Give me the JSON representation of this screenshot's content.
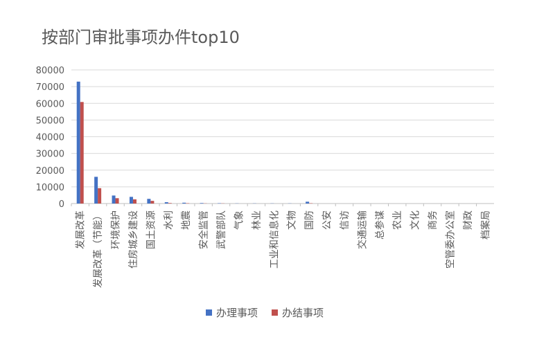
{
  "chart_data": {
    "type": "bar",
    "title": "按部门审批事项办件top10",
    "xlabel": "",
    "ylabel": "",
    "ylim": [
      0,
      80000
    ],
    "yticks": [
      "80000",
      "70000",
      "60000",
      "50000",
      "40000",
      "30000",
      "20000",
      "10000",
      "0"
    ],
    "grid": true,
    "legend_position": "bottom",
    "categories": [
      "发展改革",
      "发展改革（节能）",
      "环境保护",
      "住房城乡建设",
      "国土资源",
      "水利",
      "地震",
      "安全监管",
      "武警部队",
      "气象",
      "林业",
      "工业和信息化",
      "文物",
      "国防",
      "公安",
      "信访",
      "交通运输",
      "总参谋",
      "农业",
      "文化",
      "商务",
      "空管委办公室",
      "财政",
      "档案局"
    ],
    "series": [
      {
        "name": "办理事项",
        "color": "#4472C4",
        "values": [
          73000,
          16000,
          4800,
          4000,
          2800,
          800,
          500,
          300,
          200,
          100,
          100,
          100,
          100,
          1100,
          0,
          0,
          0,
          0,
          0,
          0,
          0,
          0,
          0,
          0
        ]
      },
      {
        "name": "办结事项",
        "color": "#C0504D",
        "values": [
          60800,
          9200,
          3200,
          2500,
          1600,
          300,
          200,
          100,
          100,
          0,
          0,
          0,
          0,
          200,
          0,
          0,
          0,
          0,
          0,
          0,
          0,
          0,
          0,
          0
        ]
      }
    ]
  }
}
